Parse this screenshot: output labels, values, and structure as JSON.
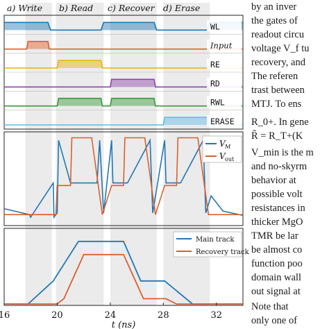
{
  "phases": [
    "a) Write",
    "b) Read",
    "c) Recover",
    "d) Erase"
  ],
  "signals": [
    "WL",
    "Input",
    "RE",
    "RD",
    "RWL",
    "ERASE"
  ],
  "colors": {
    "WL": "#1f77b4",
    "Input": "#d95f30",
    "RE": "#e6b400",
    "RD": "#8e44ad",
    "RWL": "#3a9a3a",
    "ERASE": "#5fbbe6",
    "vm": "#1f77b4",
    "vout": "#d95f30",
    "shade": "#e3e3e3"
  },
  "xlabel": "t (ns)",
  "chart_data": [
    {
      "type": "line",
      "title": "",
      "xlabel": "t (ns)",
      "xlim": [
        16,
        34
      ],
      "xticks": [
        16,
        20,
        24,
        28,
        32
      ],
      "series": [
        {
          "name": "WL",
          "x": [
            16,
            19.3,
            19.5,
            23.3,
            23.5,
            27.3,
            27.5,
            31.3,
            31.5,
            34
          ],
          "y": [
            1,
            1,
            0,
            0,
            1,
            1,
            0,
            0,
            1,
            1
          ]
        },
        {
          "name": "Input",
          "x": [
            16,
            17.7,
            17.8,
            19.3,
            19.4,
            34
          ],
          "y": [
            0,
            0,
            1,
            1,
            0,
            0
          ]
        },
        {
          "name": "RE",
          "x": [
            16,
            20.0,
            20.1,
            23.3,
            23.4,
            34
          ],
          "y": [
            0,
            0,
            1,
            1,
            0,
            0
          ]
        },
        {
          "name": "RD",
          "x": [
            16,
            24.0,
            24.1,
            27.3,
            27.4,
            34
          ],
          "y": [
            0,
            0,
            1,
            1,
            0,
            0
          ]
        },
        {
          "name": "RWL",
          "x": [
            16,
            20.0,
            20.1,
            23.3,
            23.4,
            24.0,
            24.1,
            27.3,
            27.4,
            34
          ],
          "y": [
            0,
            0,
            1,
            1,
            0,
            0,
            1,
            1,
            0,
            0
          ]
        },
        {
          "name": "ERASE",
          "x": [
            16,
            28.0,
            28.1,
            31.3,
            31.4,
            34
          ],
          "y": [
            0,
            0,
            1,
            1,
            0,
            0
          ]
        }
      ],
      "legend": []
    },
    {
      "type": "line",
      "xlabel": "t (ns)",
      "xlim": [
        16,
        34
      ],
      "series": [
        {
          "name": "V_M",
          "x": [
            16,
            17.9,
            18.0,
            19.7,
            19.75,
            20.0,
            20.1,
            21.0,
            21.3,
            23.0,
            23.2,
            23.5,
            24.1,
            24.2,
            25.0,
            25.3,
            27.0,
            27.2,
            28.1,
            28.2,
            29.1,
            29.3,
            31.0,
            31.2,
            31.6,
            32.5,
            34
          ],
          "y": [
            0.15,
            0.08,
            0.05,
            0.45,
            0.05,
            0.1,
            0.95,
            0.45,
            0.45,
            0.45,
            0.95,
            0.1,
            0.95,
            0.45,
            0.45,
            0.45,
            0.95,
            0.1,
            0.95,
            0.45,
            0.45,
            0.45,
            0.95,
            0.1,
            0.3,
            0.12,
            0.07
          ]
        },
        {
          "name": "V_out",
          "x": [
            16,
            19.9,
            20.0,
            20.1,
            21.0,
            21.1,
            22.5,
            22.6,
            23.4,
            24.1,
            24.2,
            25.0,
            25.1,
            26.5,
            26.6,
            27.4,
            28.1,
            28.2,
            29.0,
            29.1,
            30.5,
            30.6,
            31.4,
            32.0,
            34
          ],
          "y": [
            0.08,
            0.08,
            0.42,
            0.42,
            0.42,
            0.98,
            0.98,
            0.98,
            0.08,
            0.42,
            0.42,
            0.42,
            0.98,
            0.98,
            0.98,
            0.08,
            0.42,
            0.42,
            0.42,
            0.98,
            0.98,
            0.98,
            0.08,
            0.08,
            0.08
          ]
        }
      ],
      "legend": [
        "V_M",
        "V_out"
      ],
      "legend_position": "top-right"
    },
    {
      "type": "line",
      "xlabel": "t (ns)",
      "xlim": [
        16,
        34
      ],
      "series": [
        {
          "name": "Main track",
          "x": [
            16,
            17.8,
            19.7,
            21.6,
            22.6,
            25.0,
            26.3,
            28.1,
            30.2,
            34
          ],
          "y": [
            0,
            0,
            0.35,
            0.95,
            0.95,
            0.95,
            0.35,
            0.35,
            0,
            0
          ]
        },
        {
          "name": "Recovery track",
          "x": [
            16,
            20.0,
            20.5,
            22.0,
            23.5,
            24.0,
            25.0,
            26.5,
            28.0,
            28.2,
            29.0,
            34
          ],
          "y": [
            0,
            0,
            0.08,
            0.75,
            0.75,
            0.75,
            0.75,
            0.08,
            0.08,
            0.08,
            0,
            0
          ]
        }
      ],
      "legend": [
        "Main track",
        "Recovery track"
      ],
      "legend_position": "top-right"
    }
  ],
  "right_text": [
    "by an inver",
    "the gates of",
    "readout circu",
    "voltage V_f tu",
    "recovery, and",
    "The referen",
    "trast between",
    "MTJ. To ens",
    "R_0+. In gene",
    "R̃ = R_T+(K",
    "V_min is the m",
    "and no-skyrm",
    "behavior at",
    "possible volt",
    "resistances in",
    "thicker MgO",
    "TMR be lar",
    "be almost co",
    "function poo",
    "domain wall",
    "out signal at",
    "Note that",
    "only one of"
  ]
}
